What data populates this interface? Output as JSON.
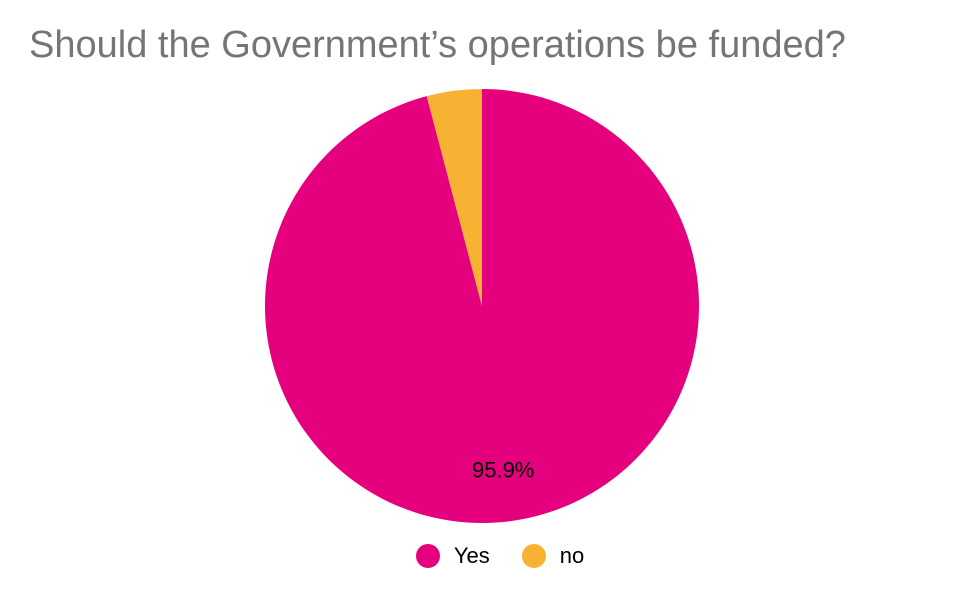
{
  "chart_data": {
    "type": "pie",
    "title": "Should the Government’s operations be funded?",
    "categories": [
      "Yes",
      "no"
    ],
    "values": [
      95.9,
      4.1
    ],
    "colors": [
      "#e5007d",
      "#f7b233"
    ],
    "data_labels": [
      "95.9%",
      ""
    ],
    "legend": {
      "placement": "bottom"
    }
  }
}
